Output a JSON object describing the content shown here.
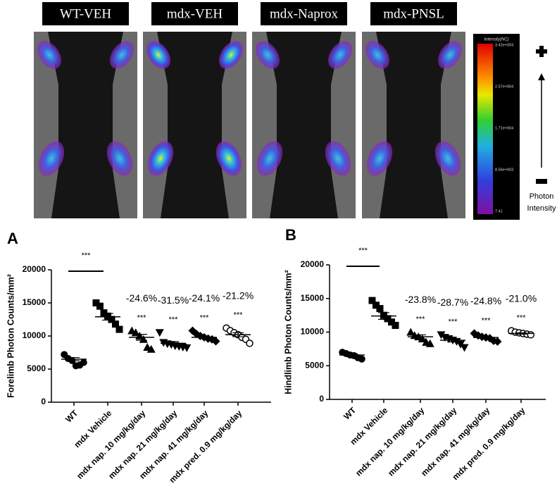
{
  "images": {
    "labels": [
      "WT-VEH",
      "mdx-VEH",
      "mdx-Naprox",
      "mdx-PNSL"
    ],
    "colorbar_title": "Intensity(NC)",
    "colorbar_ticks": [
      "3.42e+004",
      "2.57e+004",
      "1.71e+004",
      "8.56e+003",
      "7.41"
    ],
    "photon_label": [
      "Photon",
      "Intensity"
    ]
  },
  "chart_data": [
    {
      "type": "dot",
      "panel": "A",
      "ylabel": "Forelimb Photon Counts/mm²",
      "categories": [
        "WT",
        "mdx Vehicle",
        "mdx nap. 10 mg/kg/day",
        "mdx nap. 21 mg/kg/day",
        "mdx nap. 41 mg/kg/day",
        "mdx pred. 0.9 mg/kg/day"
      ],
      "markers": [
        "circle",
        "square",
        "triangle-up",
        "triangle-down",
        "diamond",
        "open-circle"
      ],
      "points": [
        [
          7200,
          6600,
          6300,
          5500,
          5600,
          6000
        ],
        [
          15000,
          14500,
          13500,
          13000,
          12500,
          11800,
          11000
        ],
        [
          10800,
          10500,
          10000,
          9500,
          8300,
          8000
        ],
        [
          10500,
          9000,
          8800,
          8700,
          8500,
          8400,
          8300,
          8200
        ],
        [
          10800,
          10300,
          10000,
          9800,
          9600,
          9500,
          9200
        ],
        [
          11200,
          10800,
          10500,
          10200,
          9800,
          9500,
          8900
        ]
      ],
      "means": [
        6500,
        12900,
        9800,
        8900,
        9800,
        10200
      ],
      "sems": [
        250,
        500,
        450,
        250,
        200,
        300
      ],
      "bracket_label": "***",
      "sig_labels": [
        null,
        null,
        "***",
        "***",
        "***",
        "***"
      ],
      "pct_labels": [
        null,
        null,
        "-24.6%",
        "-31.5%",
        "-24.1%",
        "-21.2%"
      ],
      "ylim": [
        0,
        20000
      ],
      "yticks": [
        0,
        5000,
        10000,
        15000,
        20000
      ]
    },
    {
      "type": "dot",
      "panel": "B",
      "ylabel": "Hindlimb Photon Counts/mm²",
      "categories": [
        "WT",
        "mdx Vehicle",
        "mdx nap. 10 mg/kg/day",
        "mdx nap. 21 mg/kg/day",
        "mdx nap. 41 mg/kg/day",
        "mdx pred. 0.9 mg/kg/day"
      ],
      "markers": [
        "circle",
        "square",
        "triangle-up",
        "triangle-down",
        "diamond",
        "open-circle"
      ],
      "points": [
        [
          7000,
          6800,
          6600,
          6500,
          6200,
          6000
        ],
        [
          14700,
          14000,
          13500,
          12500,
          12000,
          11500,
          11000
        ],
        [
          10000,
          9500,
          9300,
          9000,
          8500,
          8300
        ],
        [
          9600,
          9200,
          9000,
          8800,
          8600,
          8200,
          7700
        ],
        [
          9800,
          9500,
          9300,
          9200,
          9100,
          8700,
          8600
        ],
        [
          10200,
          10000,
          9900,
          9800,
          9700,
          9600
        ]
      ],
      "means": [
        6600,
        12400,
        9300,
        8800,
        9200,
        9800
      ],
      "sems": [
        200,
        500,
        300,
        250,
        200,
        100
      ],
      "bracket_label": "***",
      "sig_labels": [
        null,
        null,
        "***",
        "***",
        "***",
        "***"
      ],
      "pct_labels": [
        null,
        null,
        "-23.8%",
        "-28.7%",
        "-24.8%",
        "-21.0%"
      ],
      "ylim": [
        0,
        20000
      ],
      "yticks": [
        0,
        5000,
        10000,
        15000,
        20000
      ]
    }
  ]
}
